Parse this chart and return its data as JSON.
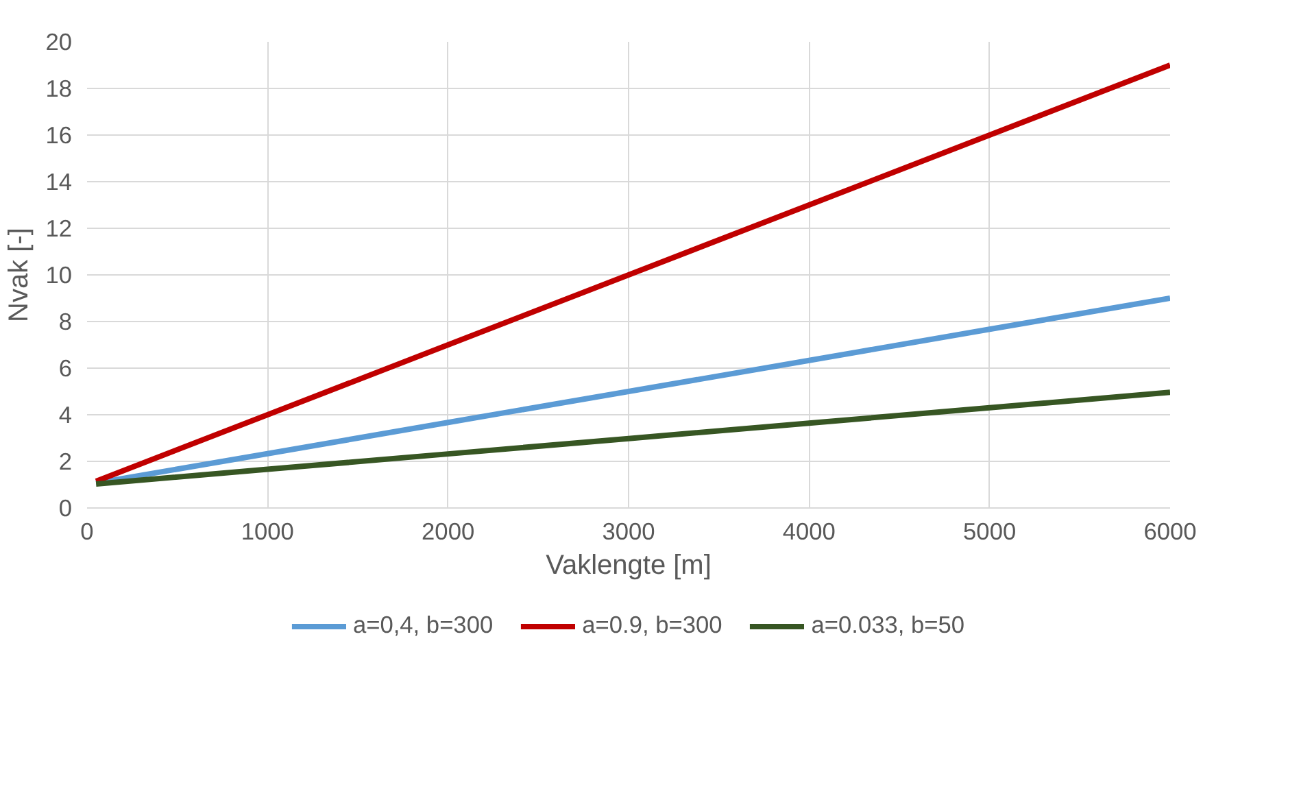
{
  "chart_data": {
    "type": "line",
    "xlabel": "Vaklengte [m]",
    "ylabel": "Nvak [-]",
    "x": [
      50,
      1000,
      2000,
      3000,
      4000,
      5000,
      6000
    ],
    "series": [
      {
        "name": "a=0,4, b=300",
        "color": "#5b9bd5",
        "values": [
          1.07,
          2.33,
          3.67,
          5,
          6.33,
          7.67,
          9
        ]
      },
      {
        "name": "a=0.9, b=300",
        "color": "#c00000",
        "values": [
          1.15,
          4,
          7,
          10,
          13,
          16,
          19
        ]
      },
      {
        "name": "a=0.033, b=50",
        "color": "#375623",
        "values": [
          1.03,
          1.66,
          2.32,
          2.98,
          3.64,
          4.3,
          4.96
        ]
      }
    ],
    "xlim": [
      0,
      6000
    ],
    "xticks": [
      0,
      1000,
      2000,
      3000,
      4000,
      5000,
      6000
    ],
    "ylim": [
      0,
      20
    ],
    "yticks": [
      0,
      2,
      4,
      6,
      8,
      10,
      12,
      14,
      16,
      18,
      20
    ],
    "grid": true,
    "legend": "bottom",
    "marker": "none",
    "line_style": "solid"
  }
}
